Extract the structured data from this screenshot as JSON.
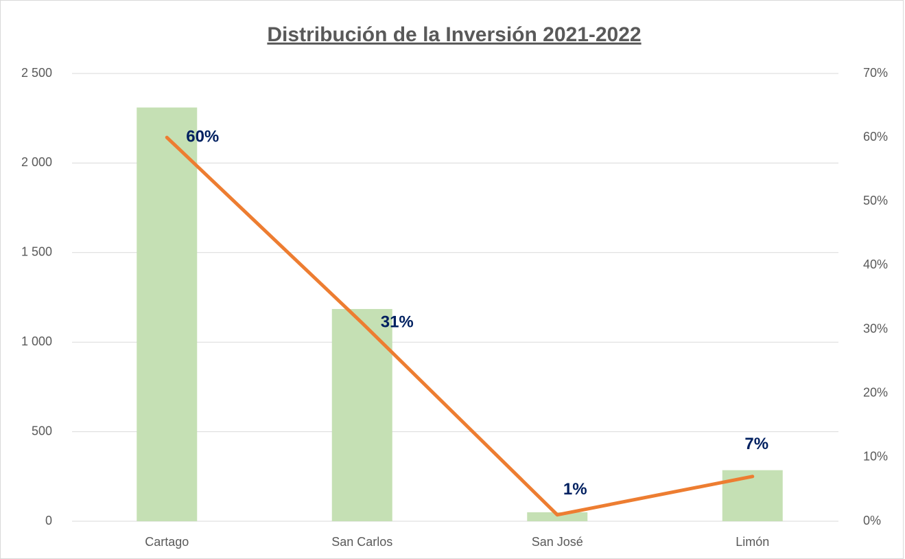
{
  "chart_data": {
    "type": "bar-line",
    "title": "Distribución de la Inversión 2021-2022",
    "categories": [
      "Cartago",
      "San Carlos",
      "San José",
      "Limón"
    ],
    "series": [
      {
        "type": "bar",
        "color": "#c5e0b4",
        "values": [
          2310,
          1185,
          50,
          285
        ]
      },
      {
        "type": "line",
        "axis": "y2",
        "color": "#ed7d31",
        "values": [
          60,
          31,
          1,
          7
        ],
        "value_labels": [
          "60%",
          "31%",
          "1%",
          "7%"
        ]
      }
    ],
    "ylim": [
      0,
      2500
    ],
    "yticks": [
      0,
      500,
      {
        "value": 1000,
        "label": "1 000"
      },
      {
        "value": 1500,
        "label": "1 500"
      },
      {
        "value": 2000,
        "label": "2 000"
      },
      {
        "value": 2500,
        "label": "2 500"
      }
    ],
    "y2lim": [
      0,
      70
    ],
    "y2ticks": [
      {
        "value": 0,
        "label": "0%"
      },
      {
        "value": 10,
        "label": "10%"
      },
      {
        "value": 20,
        "label": "20%"
      },
      {
        "value": 30,
        "label": "30%"
      },
      {
        "value": 40,
        "label": "40%"
      },
      {
        "value": 50,
        "label": "50%"
      },
      {
        "value": 60,
        "label": "60%"
      },
      {
        "value": 70,
        "label": "70%"
      }
    ],
    "grid": true
  }
}
